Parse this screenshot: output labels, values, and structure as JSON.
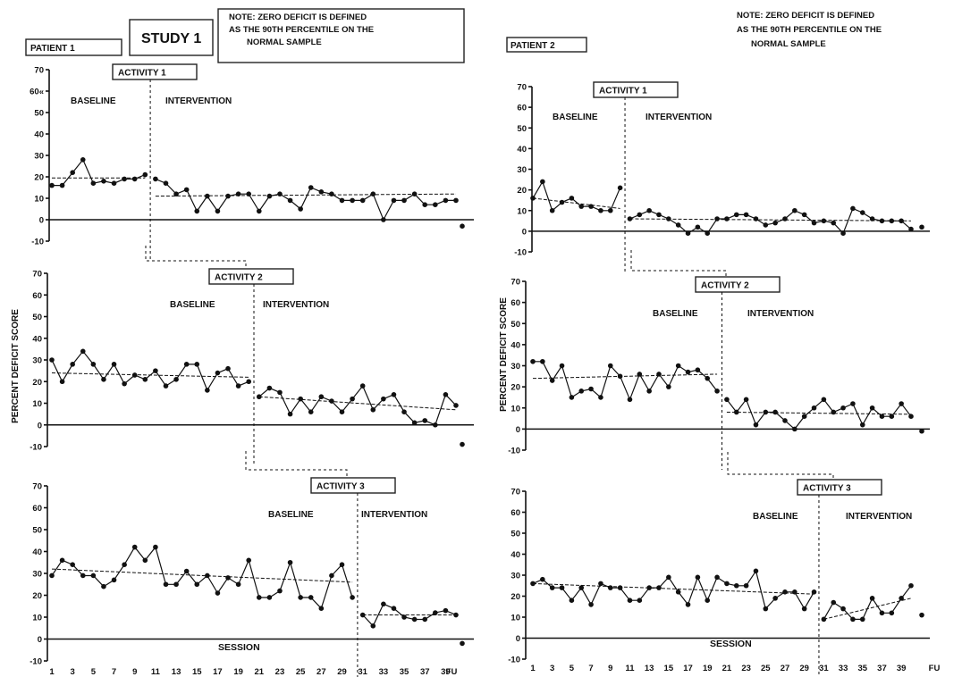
{
  "figure": {
    "study_label": "STUDY 1",
    "note_lines": [
      "NOTE: ZERO DEFICIT IS DEFINED",
      "AS THE 90TH PERCENTILE ON THE",
      "NORMAL SAMPLE"
    ],
    "ylabel": "PERCENT DEFICIT SCORE",
    "xlabel": "SESSION",
    "baseline_label": "BASELINE",
    "intervention_label": "INTERVENTION",
    "fu_label": "FU"
  },
  "chart_data": [
    {
      "type": "line",
      "patient": "PATIENT 1",
      "activity": "ACTIVITY 1",
      "ylim": [
        -10,
        70
      ],
      "yticks": [
        -10,
        0,
        10,
        20,
        30,
        40,
        50,
        60,
        70
      ],
      "ytick_labels": [
        "-10",
        "0",
        "10",
        "20",
        "30",
        "40",
        "50",
        "60«",
        "70"
      ],
      "xlim": [
        1,
        40
      ],
      "phase_change_after": 10,
      "x": [
        1,
        2,
        3,
        4,
        5,
        6,
        7,
        8,
        9,
        10,
        11,
        12,
        13,
        14,
        15,
        16,
        17,
        18,
        19,
        20,
        21,
        22,
        23,
        24,
        25,
        26,
        27,
        28,
        29,
        30,
        31,
        32,
        33,
        34,
        35,
        36,
        37,
        38,
        39,
        40
      ],
      "values": [
        16,
        16,
        22,
        28,
        17,
        18,
        17,
        19,
        19,
        21,
        19,
        17,
        12,
        14,
        4,
        11,
        4,
        11,
        12,
        12,
        4,
        11,
        12,
        9,
        5,
        15,
        13,
        12,
        9,
        9,
        9,
        12,
        0,
        9,
        9,
        12,
        7,
        7,
        9,
        9
      ],
      "fu": -3,
      "trend": [
        {
          "x": [
            1,
            10
          ],
          "y": [
            19.5,
            19.5
          ]
        },
        {
          "x": [
            11,
            40
          ],
          "y": [
            11,
            12
          ]
        }
      ]
    },
    {
      "type": "line",
      "patient": "PATIENT 1",
      "activity": "ACTIVITY 2",
      "ylim": [
        -10,
        70
      ],
      "yticks": [
        -10,
        0,
        10,
        20,
        30,
        40,
        50,
        60,
        70
      ],
      "ytick_labels": [
        "-10",
        "0",
        "10",
        "20",
        "30",
        "40",
        "50",
        "60",
        "70"
      ],
      "xlim": [
        1,
        40
      ],
      "phase_change_after": 20,
      "x": [
        1,
        2,
        3,
        4,
        5,
        6,
        7,
        8,
        9,
        10,
        11,
        12,
        13,
        14,
        15,
        16,
        17,
        18,
        19,
        20,
        21,
        22,
        23,
        24,
        25,
        26,
        27,
        28,
        29,
        30,
        31,
        32,
        33,
        34,
        35,
        36,
        37,
        38,
        39,
        40
      ],
      "values": [
        30,
        20,
        28,
        34,
        28,
        21,
        28,
        19,
        23,
        21,
        25,
        18,
        21,
        28,
        28,
        16,
        24,
        26,
        18,
        20,
        13,
        17,
        15,
        5,
        12,
        6,
        13,
        11,
        6,
        12,
        18,
        7,
        12,
        14,
        6,
        1,
        2,
        0,
        14,
        9
      ],
      "fu": -9,
      "trend": [
        {
          "x": [
            1,
            20
          ],
          "y": [
            24,
            22
          ]
        },
        {
          "x": [
            21,
            40
          ],
          "y": [
            13,
            7
          ]
        }
      ]
    },
    {
      "type": "line",
      "patient": "PATIENT 1",
      "activity": "ACTIVITY 3",
      "ylim": [
        -10,
        70
      ],
      "yticks": [
        -10,
        0,
        10,
        20,
        30,
        40,
        50,
        60,
        70
      ],
      "ytick_labels": [
        "-10",
        "0",
        "10",
        "20",
        "30",
        "40",
        "50",
        "60",
        "70"
      ],
      "xlim": [
        1,
        40
      ],
      "phase_change_after": 30,
      "x": [
        1,
        2,
        3,
        4,
        5,
        6,
        7,
        8,
        9,
        10,
        11,
        12,
        13,
        14,
        15,
        16,
        17,
        18,
        19,
        20,
        21,
        22,
        23,
        24,
        25,
        26,
        27,
        28,
        29,
        30,
        31,
        32,
        33,
        34,
        35,
        36,
        37,
        38,
        39,
        40
      ],
      "values": [
        29,
        36,
        34,
        29,
        29,
        24,
        27,
        34,
        42,
        36,
        42,
        25,
        25,
        31,
        25,
        29,
        21,
        28,
        25,
        36,
        19,
        19,
        22,
        35,
        19,
        19,
        14,
        29,
        34,
        19,
        11,
        6,
        16,
        14,
        10,
        9,
        9,
        12,
        13,
        11
      ],
      "fu": -2,
      "trend": [
        {
          "x": [
            1,
            30
          ],
          "y": [
            32,
            26
          ]
        },
        {
          "x": [
            31,
            40
          ],
          "y": [
            11,
            11
          ]
        }
      ]
    },
    {
      "type": "line",
      "patient": "PATIENT 2",
      "activity": "ACTIVITY 1",
      "ylim": [
        -10,
        70
      ],
      "yticks": [
        -10,
        0,
        10,
        20,
        30,
        40,
        50,
        60,
        70
      ],
      "ytick_labels": [
        "-10",
        "0",
        "10",
        "20",
        "30",
        "40",
        "50",
        "60",
        "70"
      ],
      "xlim": [
        1,
        40
      ],
      "phase_change_after": 10,
      "x": [
        1,
        2,
        3,
        4,
        5,
        6,
        7,
        8,
        9,
        10,
        11,
        12,
        13,
        14,
        15,
        16,
        17,
        18,
        19,
        20,
        21,
        22,
        23,
        24,
        25,
        26,
        27,
        28,
        29,
        30,
        31,
        32,
        33,
        34,
        35,
        36,
        37,
        38,
        39,
        40
      ],
      "values": [
        16,
        24,
        10,
        14,
        16,
        12,
        12,
        10,
        10,
        21,
        6,
        8,
        10,
        8,
        6,
        3,
        -1,
        2,
        -1,
        6,
        6,
        8,
        8,
        6,
        3,
        4,
        6,
        10,
        8,
        4,
        5,
        4,
        -1,
        11,
        9,
        6,
        5,
        5,
        5,
        1
      ],
      "fu": 2,
      "trend": [
        {
          "x": [
            1,
            10
          ],
          "y": [
            16,
            11
          ]
        },
        {
          "x": [
            11,
            40
          ],
          "y": [
            6,
            5
          ]
        }
      ]
    },
    {
      "type": "line",
      "patient": "PATIENT 2",
      "activity": "ACTIVITY 2",
      "ylim": [
        -10,
        70
      ],
      "yticks": [
        -10,
        0,
        10,
        20,
        30,
        40,
        50,
        60,
        70
      ],
      "ytick_labels": [
        "-10",
        "0",
        "10",
        "20",
        "30",
        "40",
        "50",
        "60",
        "70"
      ],
      "xlim": [
        1,
        40
      ],
      "phase_change_after": 20,
      "x": [
        1,
        2,
        3,
        4,
        5,
        6,
        7,
        8,
        9,
        10,
        11,
        12,
        13,
        14,
        15,
        16,
        17,
        18,
        19,
        20,
        21,
        22,
        23,
        24,
        25,
        26,
        27,
        28,
        29,
        30,
        31,
        32,
        33,
        34,
        35,
        36,
        37,
        38,
        39,
        40
      ],
      "values": [
        32,
        32,
        23,
        30,
        15,
        18,
        19,
        15,
        30,
        25,
        14,
        26,
        18,
        26,
        20,
        30,
        27,
        28,
        24,
        18,
        14,
        8,
        14,
        2,
        8,
        8,
        4,
        0,
        6,
        10,
        14,
        8,
        10,
        12,
        2,
        10,
        6,
        6,
        12,
        6
      ],
      "fu": -1,
      "trend": [
        {
          "x": [
            1,
            20
          ],
          "y": [
            24,
            26
          ]
        },
        {
          "x": [
            21,
            40
          ],
          "y": [
            8,
            7
          ]
        }
      ]
    },
    {
      "type": "line",
      "patient": "PATIENT 2",
      "activity": "ACTIVITY 3",
      "ylim": [
        -10,
        70
      ],
      "yticks": [
        -10,
        0,
        10,
        20,
        30,
        40,
        50,
        60,
        70
      ],
      "ytick_labels": [
        "-10",
        "0",
        "10",
        "20",
        "30",
        "40",
        "50",
        "60",
        "70"
      ],
      "xlim": [
        1,
        40
      ],
      "phase_change_after": 30,
      "x": [
        1,
        2,
        3,
        4,
        5,
        6,
        7,
        8,
        9,
        10,
        11,
        12,
        13,
        14,
        15,
        16,
        17,
        18,
        19,
        20,
        21,
        22,
        23,
        24,
        25,
        26,
        27,
        28,
        29,
        30,
        31,
        32,
        33,
        34,
        35,
        36,
        37,
        38,
        39,
        40
      ],
      "values": [
        26,
        28,
        24,
        24,
        18,
        24,
        16,
        26,
        24,
        24,
        18,
        18,
        24,
        24,
        29,
        22,
        16,
        29,
        18,
        29,
        26,
        25,
        25,
        32,
        14,
        19,
        22,
        22,
        14,
        22,
        9,
        17,
        14,
        9,
        9,
        19,
        12,
        12,
        19,
        25
      ],
      "fu": 11,
      "trend": [
        {
          "x": [
            1,
            30
          ],
          "y": [
            26,
            21
          ]
        },
        {
          "x": [
            31,
            40
          ],
          "y": [
            9,
            19
          ]
        }
      ]
    }
  ],
  "x_tick_labels_left": [
    "1",
    "3",
    "5",
    "7",
    "9",
    "11",
    "13",
    "15",
    "17",
    "19",
    "21",
    "23",
    "25",
    "27",
    "29",
    "31",
    "33",
    "35",
    "37",
    "39"
  ],
  "x_tick_labels_right": [
    "1",
    "3",
    "5",
    "7",
    "9",
    "11",
    "13",
    "15",
    "17",
    "19",
    "21",
    "23",
    "25",
    "27",
    "29",
    "31",
    "33",
    "35",
    "37",
    "39"
  ]
}
